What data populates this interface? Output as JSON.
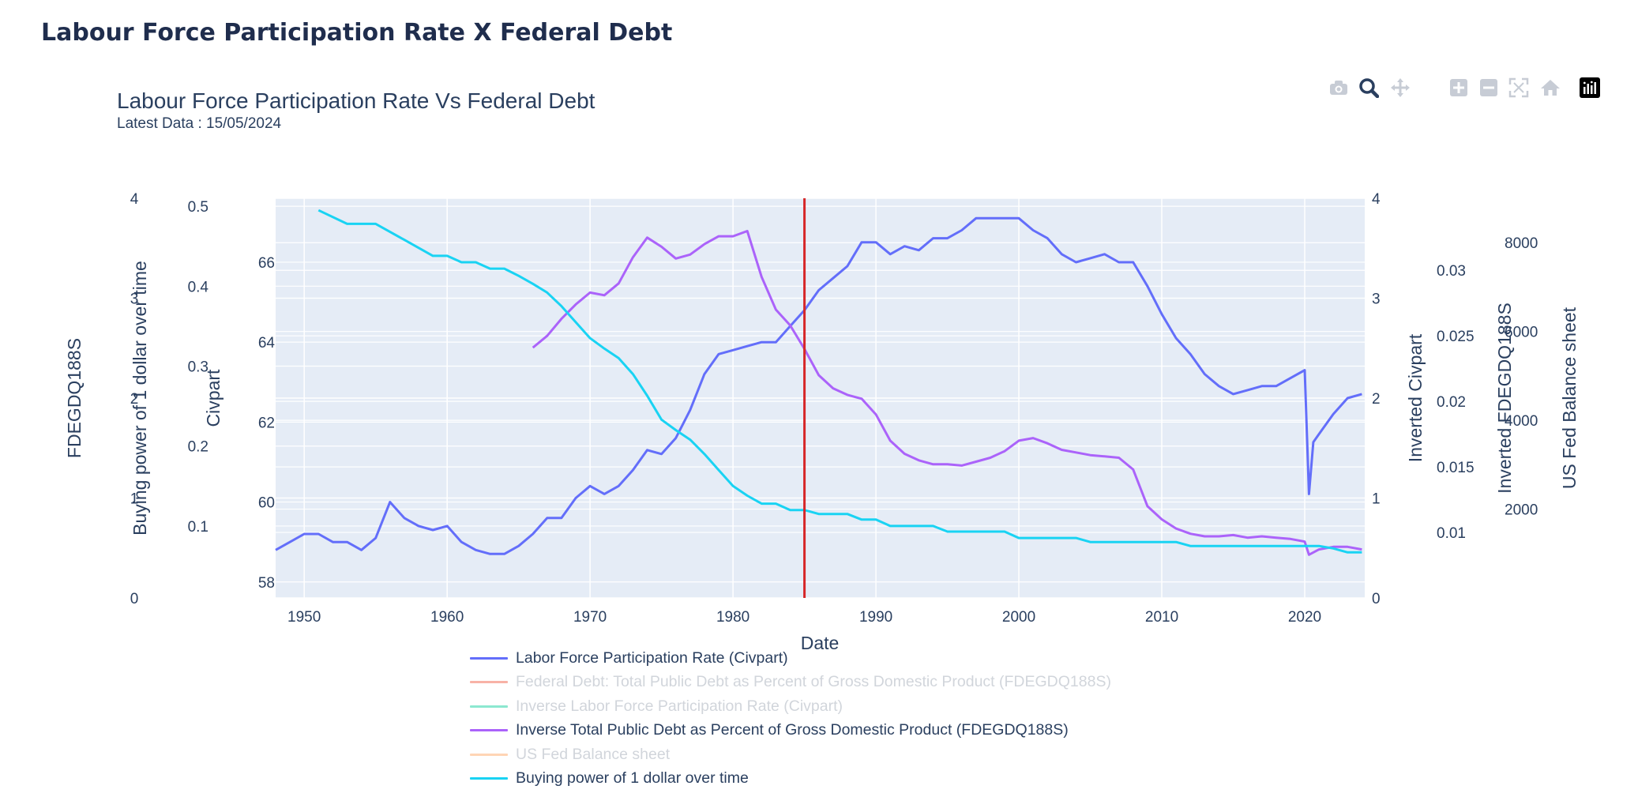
{
  "page": {
    "title": "Labour Force Participation Rate X Federal Debt"
  },
  "modebar": {
    "buttons": [
      {
        "name": "camera-icon",
        "color": "#c7ccd5"
      },
      {
        "name": "zoom-icon",
        "color": "#2a3f5f"
      },
      {
        "name": "pan-icon",
        "color": "#c7ccd5"
      },
      {
        "name": "zoom-in-icon",
        "color": "#c7ccd5"
      },
      {
        "name": "zoom-out-icon",
        "color": "#c7ccd5"
      },
      {
        "name": "autoscale-icon",
        "color": "#c7ccd5"
      },
      {
        "name": "reset-axes-icon",
        "color": "#c7ccd5"
      },
      {
        "name": "plotly-logo-icon",
        "color": "#000000"
      }
    ]
  },
  "chart_data": {
    "type": "line",
    "title": "Labour Force Participation Rate Vs Federal Debt",
    "subtitle": "Latest Data : 15/05/2024",
    "xlabel": "Date",
    "xlim": [
      1948,
      2024.2
    ],
    "x_ticks": [
      "1950",
      "1960",
      "1970",
      "1980",
      "1990",
      "2000",
      "2010",
      "2020"
    ],
    "background_color": "#e5ecf6",
    "grid": true,
    "legend_position": "bottom-center",
    "vline": {
      "x": 1985,
      "color": "#d62728"
    },
    "axes": [
      {
        "id": "y_fdegdq",
        "title": "FDEGDQ188S",
        "side": "left",
        "range": [
          0,
          4
        ],
        "ticks": [
          "0",
          "1",
          "2",
          "3",
          "4"
        ]
      },
      {
        "id": "y_buying",
        "title": "Buying power of 1 dollar over time",
        "side": "left",
        "range": [
          0.01,
          0.51
        ],
        "ticks": [
          "0.1",
          "0.2",
          "0.3",
          "0.4",
          "0.5"
        ]
      },
      {
        "id": "y_civpart",
        "title": "Civpart",
        "side": "left",
        "range": [
          57.6,
          67.6
        ],
        "ticks": [
          "58",
          "60",
          "62",
          "64",
          "66"
        ]
      },
      {
        "id": "y_inv_civpart",
        "title": "Inverted Civpart",
        "side": "right",
        "range": [
          0,
          4
        ],
        "ticks": [
          "0",
          "1",
          "2",
          "3",
          "4"
        ]
      },
      {
        "id": "y_inv_fdegdq",
        "title": "Inverted FDEGDQ188S",
        "side": "right",
        "range": [
          0.005,
          0.0355
        ],
        "ticks": [
          "0.01",
          "0.015",
          "0.02",
          "0.025",
          "0.03"
        ]
      },
      {
        "id": "y_balance",
        "title": "US Fed Balance sheet",
        "side": "right",
        "range": [
          0,
          9000
        ],
        "ticks": [
          "2000",
          "4000",
          "6000",
          "8000"
        ]
      }
    ],
    "series": [
      {
        "name": "Labor Force Participation Rate (Civpart)",
        "color": "#636efa",
        "axis": "y_civpart",
        "visible": true,
        "x": [
          1948,
          1949,
          1950,
          1951,
          1952,
          1953,
          1954,
          1955,
          1956,
          1957,
          1958,
          1959,
          1960,
          1961,
          1962,
          1963,
          1964,
          1965,
          1966,
          1967,
          1968,
          1969,
          1970,
          1971,
          1972,
          1973,
          1974,
          1975,
          1976,
          1977,
          1978,
          1979,
          1980,
          1981,
          1982,
          1983,
          1984,
          1985,
          1986,
          1987,
          1988,
          1989,
          1990,
          1991,
          1992,
          1993,
          1994,
          1995,
          1996,
          1997,
          1998,
          1999,
          2000,
          2001,
          2002,
          2003,
          2004,
          2005,
          2006,
          2007,
          2008,
          2009,
          2010,
          2011,
          2012,
          2013,
          2014,
          2015,
          2016,
          2017,
          2018,
          2019,
          2020,
          2020.3,
          2020.6,
          2021,
          2022,
          2023,
          2024
        ],
        "y": [
          58.8,
          59.0,
          59.2,
          59.2,
          59.0,
          59.0,
          58.8,
          59.1,
          60.0,
          59.6,
          59.4,
          59.3,
          59.4,
          59.0,
          58.8,
          58.7,
          58.7,
          58.9,
          59.2,
          59.6,
          59.6,
          60.1,
          60.4,
          60.2,
          60.4,
          60.8,
          61.3,
          61.2,
          61.6,
          62.3,
          63.2,
          63.7,
          63.8,
          63.9,
          64.0,
          64.0,
          64.4,
          64.8,
          65.3,
          65.6,
          65.9,
          66.5,
          66.5,
          66.2,
          66.4,
          66.3,
          66.6,
          66.6,
          66.8,
          67.1,
          67.1,
          67.1,
          67.1,
          66.8,
          66.6,
          66.2,
          66.0,
          66.1,
          66.2,
          66.0,
          66.0,
          65.4,
          64.7,
          64.1,
          63.7,
          63.2,
          62.9,
          62.7,
          62.8,
          62.9,
          62.9,
          63.1,
          63.3,
          60.2,
          61.5,
          61.7,
          62.2,
          62.6,
          62.7
        ]
      },
      {
        "name": "Federal Debt: Total Public Debt as Percent of Gross Domestic Product (FDEGDQ188S)",
        "color": "#ef553b",
        "axis": "y_fdegdq",
        "visible": false,
        "x": [],
        "y": []
      },
      {
        "name": "Inverse Labor Force Participation Rate (Civpart)",
        "color": "#00cc96",
        "axis": "y_inv_civpart",
        "visible": false,
        "x": [],
        "y": []
      },
      {
        "name": "Inverse Total Public Debt as Percent of Gross Domestic Product (FDEGDQ188S)",
        "color": "#ab63fa",
        "axis": "y_inv_fdegdq",
        "visible": true,
        "x": [
          1966,
          1967,
          1968,
          1969,
          1970,
          1971,
          1972,
          1973,
          1974,
          1975,
          1976,
          1977,
          1978,
          1979,
          1980,
          1981,
          1982,
          1983,
          1984,
          1985,
          1986,
          1987,
          1988,
          1989,
          1990,
          1991,
          1992,
          1993,
          1994,
          1995,
          1996,
          1997,
          1998,
          1999,
          2000,
          2001,
          2002,
          2003,
          2004,
          2005,
          2006,
          2007,
          2008,
          2009,
          2010,
          2011,
          2012,
          2013,
          2014,
          2015,
          2016,
          2017,
          2018,
          2019,
          2020,
          2020.3,
          2021,
          2022,
          2023,
          2024
        ],
        "y": [
          0.0241,
          0.025,
          0.0263,
          0.0274,
          0.0283,
          0.0281,
          0.029,
          0.031,
          0.0325,
          0.0318,
          0.0309,
          0.0312,
          0.032,
          0.0326,
          0.0326,
          0.033,
          0.0295,
          0.027,
          0.0258,
          0.024,
          0.022,
          0.021,
          0.0205,
          0.0202,
          0.019,
          0.017,
          0.016,
          0.0155,
          0.0152,
          0.0152,
          0.0151,
          0.0154,
          0.0157,
          0.0162,
          0.017,
          0.0172,
          0.0168,
          0.0163,
          0.0161,
          0.0159,
          0.0158,
          0.0157,
          0.0148,
          0.012,
          0.011,
          0.0103,
          0.0099,
          0.0097,
          0.0097,
          0.0098,
          0.0096,
          0.0097,
          0.0096,
          0.0095,
          0.0093,
          0.0083,
          0.0087,
          0.0089,
          0.0089,
          0.0087
        ]
      },
      {
        "name": "US Fed Balance sheet",
        "color": "#ffa15a",
        "axis": "y_balance",
        "visible": false,
        "x": [],
        "y": []
      },
      {
        "name": "Buying power of 1 dollar over time",
        "color": "#19d3f3",
        "axis": "y_buying",
        "visible": true,
        "x": [
          1951,
          1953,
          1955,
          1957,
          1959,
          1960,
          1961,
          1962,
          1963,
          1964,
          1965,
          1966,
          1967,
          1968,
          1969,
          1970,
          1971,
          1972,
          1973,
          1974,
          1975,
          1976,
          1977,
          1978,
          1979,
          1980,
          1981,
          1982,
          1983,
          1984,
          1985,
          1986,
          1987,
          1988,
          1989,
          1990,
          1991,
          1992,
          1993,
          1994,
          1995,
          1996,
          1997,
          1998,
          1999,
          2000,
          2001,
          2002,
          2003,
          2004,
          2005,
          2006,
          2007,
          2008,
          2009,
          2010,
          2011,
          2012,
          2013,
          2014,
          2015,
          2016,
          2017,
          2018,
          2019,
          2020,
          2021,
          2022,
          2023,
          2024
        ],
        "y": [
          0.495,
          0.478,
          0.478,
          0.458,
          0.438,
          0.438,
          0.43,
          0.43,
          0.422,
          0.422,
          0.413,
          0.403,
          0.392,
          0.375,
          0.355,
          0.335,
          0.322,
          0.31,
          0.29,
          0.263,
          0.233,
          0.22,
          0.208,
          0.19,
          0.17,
          0.15,
          0.138,
          0.128,
          0.128,
          0.12,
          0.12,
          0.115,
          0.115,
          0.115,
          0.108,
          0.108,
          0.1,
          0.1,
          0.1,
          0.1,
          0.093,
          0.093,
          0.093,
          0.093,
          0.093,
          0.085,
          0.085,
          0.085,
          0.085,
          0.085,
          0.08,
          0.08,
          0.08,
          0.08,
          0.08,
          0.08,
          0.08,
          0.075,
          0.075,
          0.075,
          0.075,
          0.075,
          0.075,
          0.075,
          0.075,
          0.075,
          0.075,
          0.072,
          0.067,
          0.067
        ]
      }
    ]
  }
}
